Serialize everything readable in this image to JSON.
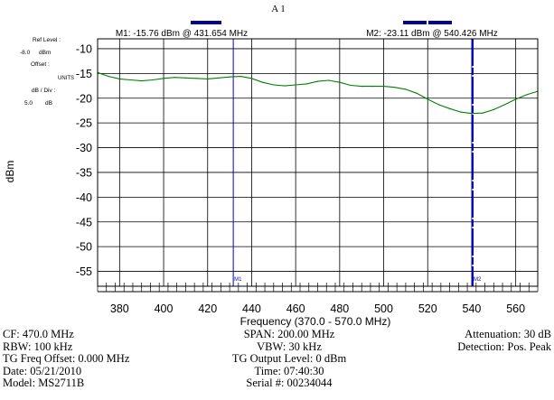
{
  "header": {
    "title": "A 1"
  },
  "markers": {
    "m1": {
      "readout": "M1: -15.76 dBm @ 431.654 MHz",
      "label": "M1",
      "freq": 431.654,
      "level": -15.76
    },
    "m2": {
      "readout": "M2: -23.11 dBm @ 540.426 MHz",
      "label": "M2",
      "freq": 540.426,
      "level": -23.11
    }
  },
  "side_panel": {
    "ref_level_label": "Ref Level :",
    "ref_level_value": "-8.0",
    "ref_level_unit": "dBm",
    "offset_label": "Offset :",
    "units_label": "UNITS",
    "db_div_label": "dB / Div :",
    "db_div_value": "5.0",
    "db_div_unit": "dB"
  },
  "chart_data": {
    "type": "line",
    "xlabel": "Frequency (370.0 - 570.0 MHz)",
    "ylabel": "dBm",
    "xlim": [
      370,
      570
    ],
    "ylim": [
      -58,
      -8
    ],
    "x_ticks": [
      380,
      400,
      420,
      440,
      460,
      480,
      500,
      520,
      540,
      560
    ],
    "y_ticks": [
      -10,
      -15,
      -20,
      -25,
      -30,
      -35,
      -40,
      -45,
      -50,
      -55
    ],
    "grid": true,
    "series": [
      {
        "color": "#008000",
        "x": [
          370,
          375,
          380,
          385,
          390,
          395,
          400,
          405,
          410,
          415,
          420,
          425,
          430,
          435,
          440,
          445,
          450,
          455,
          460,
          465,
          470,
          475,
          480,
          485,
          490,
          495,
          500,
          505,
          510,
          515,
          520,
          525,
          530,
          535,
          540,
          545,
          550,
          555,
          560,
          565,
          570
        ],
        "values": [
          -14.8,
          -15.6,
          -16.1,
          -16.3,
          -16.5,
          -16.3,
          -16.0,
          -15.8,
          -15.9,
          -16.0,
          -16.1,
          -15.9,
          -15.7,
          -15.6,
          -16.0,
          -16.8,
          -17.3,
          -17.5,
          -17.3,
          -17.1,
          -16.6,
          -16.4,
          -16.8,
          -17.4,
          -17.6,
          -17.6,
          -17.6,
          -17.8,
          -18.2,
          -19.0,
          -20.2,
          -21.3,
          -22.1,
          -22.8,
          -23.1,
          -23.0,
          -22.3,
          -21.3,
          -20.2,
          -19.3,
          -18.6
        ]
      }
    ]
  },
  "footer": {
    "left": [
      "CF: 470.0 MHz",
      "RBW: 100 kHz",
      "TG Freq Offset: 0.000 MHz",
      "Date: 05/21/2010",
      "Model: MS2711B"
    ],
    "center": [
      "SPAN: 200.00 MHz",
      "VBW: 30 kHz",
      "TG Output Level: 0 dBm",
      "Time: 07:40:30",
      "Serial #: 00234044"
    ],
    "right": [
      "Attenuation: 30 dB",
      "Detection: Pos. Peak"
    ]
  },
  "colors": {
    "trace": "#008000",
    "marker": "#0000cc",
    "bar": "#00009c",
    "grid": "#000000"
  }
}
